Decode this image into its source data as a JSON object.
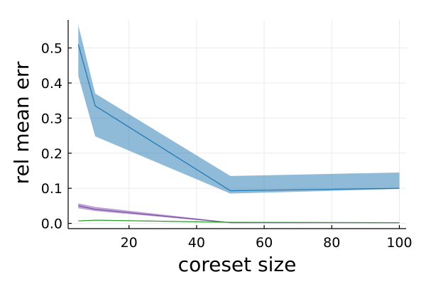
{
  "chart_data": {
    "type": "line",
    "title": "",
    "xlabel": "coreset size",
    "ylabel": "rel mean err",
    "xlim": [
      2,
      102
    ],
    "ylim": [
      -0.015,
      0.58
    ],
    "xticks": [
      20,
      40,
      60,
      80,
      100
    ],
    "yticks": [
      0.0,
      0.1,
      0.2,
      0.3,
      0.4,
      0.5
    ],
    "xtick_labels": [
      "20",
      "40",
      "60",
      "80",
      "100"
    ],
    "ytick_labels": [
      "0.0",
      "0.1",
      "0.2",
      "0.3",
      "0.4",
      "0.5"
    ],
    "grid": true,
    "legend": "none",
    "series": [
      {
        "color": "#1f77b4",
        "band_color": "#1f77b4",
        "band_opacity": 0.5,
        "x": [
          5,
          10,
          50,
          100
        ],
        "y": [
          0.51,
          0.335,
          0.093,
          0.1
        ],
        "lower": [
          0.42,
          0.248,
          0.085,
          0.098
        ],
        "upper": [
          0.565,
          0.37,
          0.135,
          0.145
        ]
      },
      {
        "color": "#7b4fa0",
        "band_color": "#9467bd",
        "band_opacity": 0.6,
        "x": [
          5,
          10,
          50,
          100
        ],
        "y": [
          0.05,
          0.04,
          0.002,
          0.002
        ],
        "lower": [
          0.043,
          0.035,
          0.001,
          0.001
        ],
        "upper": [
          0.057,
          0.047,
          0.003,
          0.003
        ]
      },
      {
        "color": "#2ca02c",
        "band_color": "#2ca02c",
        "band_opacity": 0.5,
        "x": [
          5,
          10,
          50,
          100
        ],
        "y": [
          0.007,
          0.009,
          0.003,
          0.002
        ],
        "lower": [
          0.006,
          0.008,
          0.002,
          0.001
        ],
        "upper": [
          0.008,
          0.01,
          0.004,
          0.003
        ]
      }
    ]
  }
}
